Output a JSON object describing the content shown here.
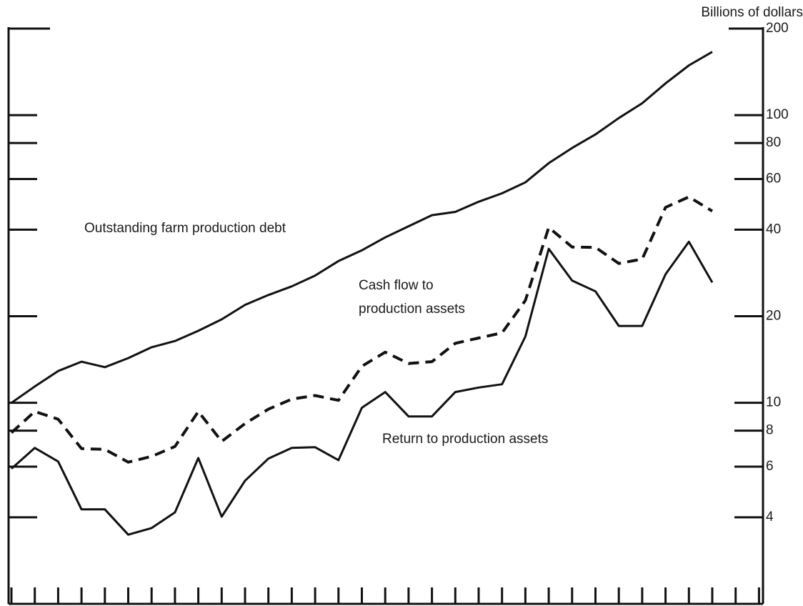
{
  "chart_data": {
    "type": "line",
    "y_label": "Billions of dollars",
    "log_scale": true,
    "ylim": [
      2,
      200
    ],
    "yticks": [
      4,
      6,
      8,
      10,
      20,
      40,
      60,
      80,
      100,
      200
    ],
    "categories": [
      null,
      null,
      null,
      null,
      null,
      null,
      null,
      null,
      null,
      null,
      null,
      null,
      null,
      null,
      null,
      null,
      null,
      null,
      null,
      null,
      null,
      null,
      null,
      null,
      null,
      null,
      null,
      null,
      null,
      null,
      null,
      null,
      null
    ],
    "series": [
      {
        "name": "Outstanding farm production debt",
        "color": "#111111",
        "dash": false,
        "values": [
          10,
          11.4,
          12.9,
          13.9,
          13.3,
          14.3,
          15.6,
          16.4,
          17.8,
          19.5,
          21.9,
          23.7,
          25.4,
          27.7,
          31.1,
          33.9,
          37.6,
          41.1,
          44.9,
          46.1,
          50.0,
          53.5,
          58.4,
          68.1,
          76.9,
          85.7,
          97.7,
          110,
          129,
          149,
          166,
          null,
          null
        ]
      },
      {
        "name": [
          "Cash flow to",
          "production assets"
        ],
        "color": "#111111",
        "dash": true,
        "values": [
          7.87,
          9.33,
          8.77,
          6.93,
          6.89,
          6.22,
          6.51,
          7.05,
          9.33,
          7.34,
          8.47,
          9.5,
          10.3,
          10.6,
          10.2,
          13.4,
          15.0,
          13.7,
          13.9,
          16.1,
          16.8,
          17.5,
          22.7,
          40.7,
          34.8,
          34.7,
          30.5,
          31.6,
          47.8,
          52.0,
          46.4,
          null,
          null
        ]
      },
      {
        "name": "Return to production assets",
        "color": "#111111",
        "dash": false,
        "values": [
          5.9,
          6.97,
          6.25,
          4.26,
          4.26,
          3.48,
          3.67,
          4.16,
          6.43,
          4.02,
          5.36,
          6.4,
          6.97,
          7.01,
          6.32,
          9.61,
          10.9,
          8.97,
          8.97,
          10.9,
          11.3,
          11.6,
          17.0,
          34.3,
          26.6,
          24.4,
          18.5,
          18.5,
          28.0,
          36.3,
          26.2,
          null,
          null
        ]
      }
    ]
  }
}
